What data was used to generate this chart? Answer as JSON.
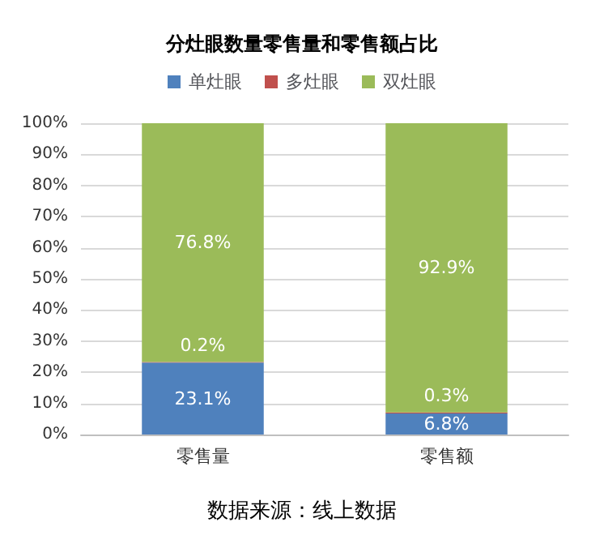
{
  "chart_data": {
    "type": "bar",
    "title": "分灶眼数量零售量和零售额占比",
    "categories": [
      "零售量",
      "零售额"
    ],
    "stacked": true,
    "series": [
      {
        "name": "单灶眼",
        "color": "#4f81bd",
        "values": [
          23.1,
          6.8
        ],
        "value_labels": [
          "23.1%",
          "6.8%"
        ]
      },
      {
        "name": "多灶眼",
        "color": "#c0504d",
        "values": [
          0.2,
          0.3
        ],
        "value_labels": [
          "0.2%",
          "0.3%"
        ]
      },
      {
        "name": "双灶眼",
        "color": "#9bbb59",
        "values": [
          76.8,
          92.9
        ],
        "value_labels": [
          "76.8%",
          "92.9%"
        ]
      }
    ],
    "ylim": [
      0,
      100
    ],
    "yticks": [
      {
        "value": 0,
        "label": "0%"
      },
      {
        "value": 10,
        "label": "10%"
      },
      {
        "value": 20,
        "label": "20%"
      },
      {
        "value": 30,
        "label": "30%"
      },
      {
        "value": 40,
        "label": "40%"
      },
      {
        "value": 50,
        "label": "50%"
      },
      {
        "value": 60,
        "label": "60%"
      },
      {
        "value": 70,
        "label": "70%"
      },
      {
        "value": 80,
        "label": "80%"
      },
      {
        "value": 90,
        "label": "90%"
      },
      {
        "value": 100,
        "label": "100%"
      }
    ],
    "grid": "y",
    "legend": "top",
    "annotations": [
      "数据来源：线上数据"
    ]
  }
}
